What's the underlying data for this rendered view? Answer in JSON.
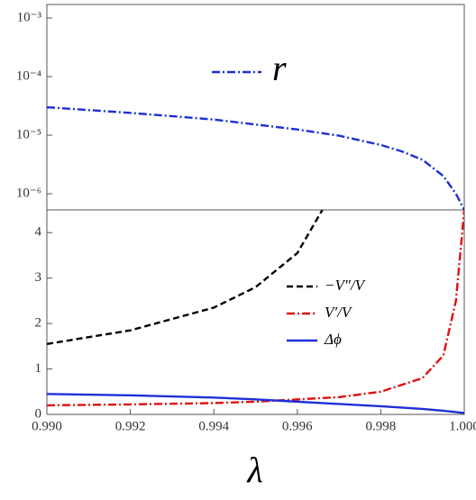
{
  "chart_data": [
    {
      "type": "line",
      "log_y": true,
      "xlim": [
        0.99,
        1.0
      ],
      "ylim": [
        5.3e-07,
        0.0017
      ],
      "yticks": [
        {
          "value": 0.001,
          "label": "10⁻³"
        },
        {
          "value": 0.0001,
          "label": "10⁻⁴"
        },
        {
          "value": 1e-05,
          "label": "10⁻⁵"
        },
        {
          "value": 1e-06,
          "label": "10⁻⁶"
        }
      ],
      "x": [
        0.99,
        0.992,
        0.994,
        0.996,
        0.997,
        0.998,
        0.9985,
        0.999,
        0.9995,
        0.9998,
        1.0
      ],
      "series": [
        {
          "name": "r",
          "color": "#1f2fd6",
          "dash": "dashdot",
          "values": [
            3e-05,
            2.4e-05,
            1.85e-05,
            1.25e-05,
            9.8e-06,
            6.8e-06,
            5.3e-06,
            3.8e-06,
            2e-06,
            1e-06,
            5.3e-07
          ]
        }
      ]
    },
    {
      "type": "line",
      "x_label": "λ",
      "xlim": [
        0.99,
        1.0
      ],
      "xticks": [
        {
          "value": 0.99,
          "label": "0.990"
        },
        {
          "value": 0.992,
          "label": "0.992"
        },
        {
          "value": 0.994,
          "label": "0.994"
        },
        {
          "value": 0.996,
          "label": "0.996"
        },
        {
          "value": 0.998,
          "label": "0.998"
        },
        {
          "value": 1.0,
          "label": "1.000"
        }
      ],
      "ylim": [
        0,
        4.5
      ],
      "yticks": [
        0,
        1,
        2,
        3,
        4
      ],
      "x": [
        0.99,
        0.992,
        0.994,
        0.995,
        0.996,
        0.9966,
        0.997,
        0.998,
        0.999,
        0.9995,
        0.9998,
        1.0
      ],
      "series": [
        {
          "name": "−V″/V",
          "color": "#000000",
          "dash": "dashed",
          "values": [
            1.55,
            1.85,
            2.35,
            2.8,
            3.55,
            4.5,
            null,
            null,
            null,
            null,
            null,
            null
          ]
        },
        {
          "name": "V′/V",
          "color": "#e01010",
          "dash": "dashdot",
          "values": [
            0.2,
            0.22,
            0.25,
            0.28,
            0.33,
            0.36,
            0.38,
            0.5,
            0.8,
            1.3,
            2.5,
            4.5
          ]
        },
        {
          "name": "Δϕ",
          "color": "#1f2fd6",
          "dash": "solid",
          "values": [
            0.45,
            0.42,
            0.37,
            0.33,
            0.28,
            0.25,
            0.23,
            0.18,
            0.12,
            0.08,
            0.05,
            0.03
          ]
        }
      ]
    }
  ]
}
